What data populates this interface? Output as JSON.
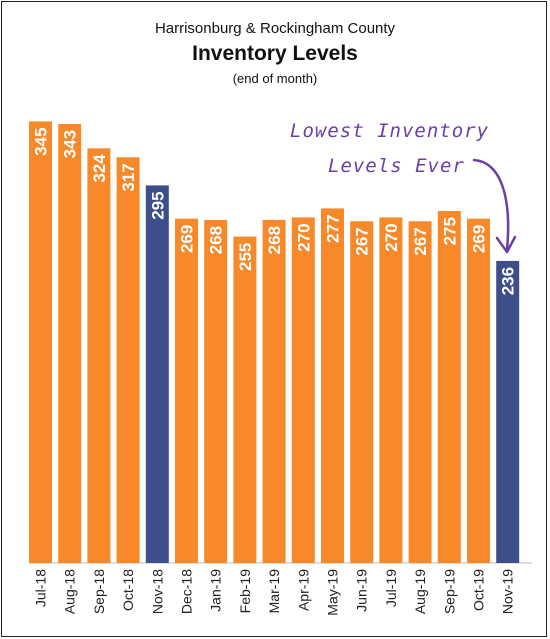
{
  "header": {
    "subtitle": "Harrisonburg & Rockingham County",
    "title": "Inventory Levels",
    "note": "(end of month)"
  },
  "annotation": {
    "line1": "Lowest Inventory",
    "line2": "Levels Ever"
  },
  "colors": {
    "bar_default": "#F7892A",
    "bar_highlight": "#3E4E8A",
    "annotation": "#6B3FA6",
    "label_text": "#FFFFFF"
  },
  "chart_data": {
    "type": "bar",
    "categories": [
      "Jul-18",
      "Aug-18",
      "Sep-18",
      "Oct-18",
      "Nov-18",
      "Dec-18",
      "Jan-19",
      "Feb-19",
      "Mar-19",
      "Apr-19",
      "May-19",
      "Jun-19",
      "Jul-19",
      "Aug-19",
      "Sep-19",
      "Oct-19",
      "Nov-19"
    ],
    "values": [
      345,
      343,
      324,
      317,
      295,
      269,
      268,
      255,
      268,
      270,
      277,
      267,
      270,
      267,
      275,
      269,
      236
    ],
    "highlighted": [
      "Nov-18",
      "Nov-19"
    ],
    "data_labels": true,
    "ylim": [
      0,
      350
    ],
    "grid": false
  }
}
